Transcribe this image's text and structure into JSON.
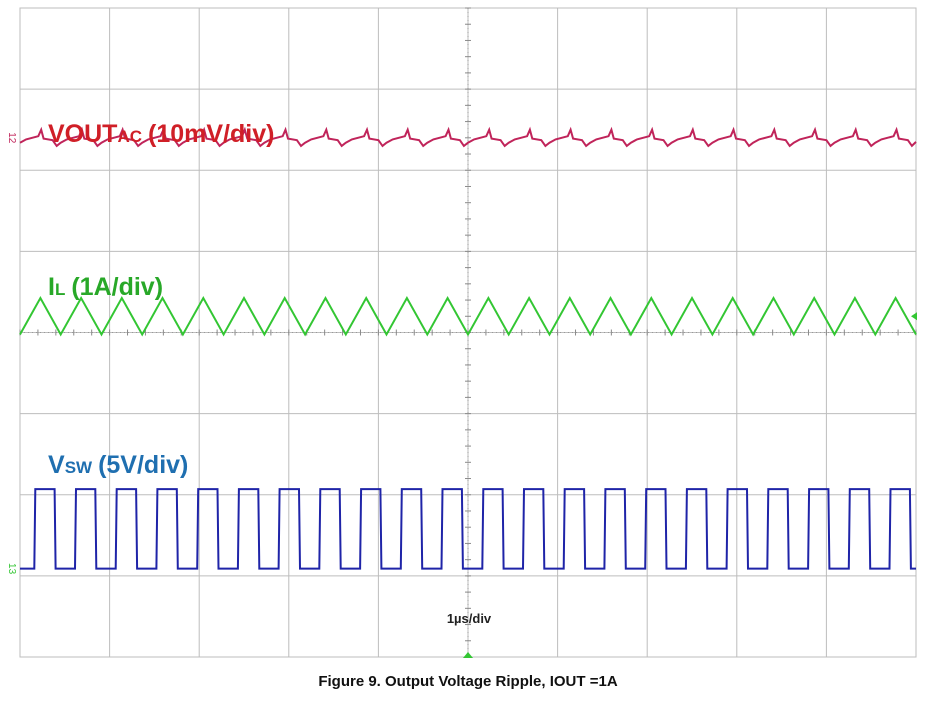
{
  "chart_data": {
    "type": "line",
    "title": "",
    "xlabel": "1µs/div",
    "ylabel": "",
    "grid": true,
    "x_divisions": 10,
    "y_divisions": 8,
    "switching_cycles": 22,
    "colors": {
      "vout": "#c0245a",
      "vout_label": "#d01f27",
      "il": "#33c633",
      "il_label": "#28a828",
      "vsw": "#1f24a8",
      "vsw_label": "#1f6fb0",
      "grid": "#bdbdbd"
    },
    "series": [
      {
        "id": "vout",
        "label_main": "VOUT",
        "label_sub": "AC",
        "label_scale": "(10mV/div)",
        "channel_marker": "12",
        "waveform": "ripple",
        "peak_to_peak_div": 0.2,
        "center_div": 1.6
      },
      {
        "id": "il",
        "label_main": "I",
        "label_sub": "L",
        "label_scale": "(1A/div)",
        "waveform": "triangle",
        "peak_to_peak_div": 0.45,
        "center_div": 3.8
      },
      {
        "id": "vsw",
        "label_main": "V",
        "label_sub": "SW",
        "label_scale": "(5V/div)",
        "channel_marker": "13",
        "waveform": "square",
        "high_div": 5.93,
        "low_div": 6.91
      }
    ]
  },
  "figure": {
    "caption": "Figure 9. Output Voltage Ripple, IOUT =1A"
  }
}
